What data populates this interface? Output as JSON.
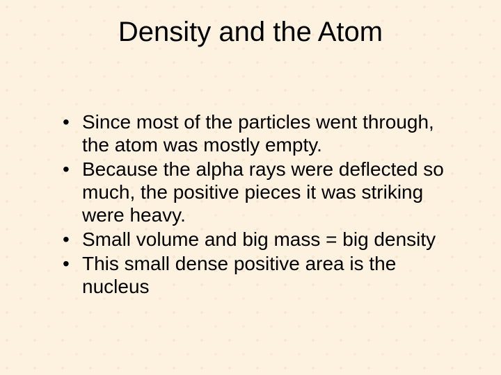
{
  "slide": {
    "title": "Density and the Atom",
    "title_fontsize": 40,
    "title_color": "#000000",
    "body_fontsize": 28,
    "body_color": "#000000",
    "background_color": "#fdf2e0",
    "bullets": [
      "Since most of the particles went through, the atom was mostly empty.",
      "Because the alpha rays were deflected so much, the positive pieces it was striking were heavy.",
      "Small volume and big mass =  big density",
      "This small dense positive area is the nucleus"
    ]
  }
}
